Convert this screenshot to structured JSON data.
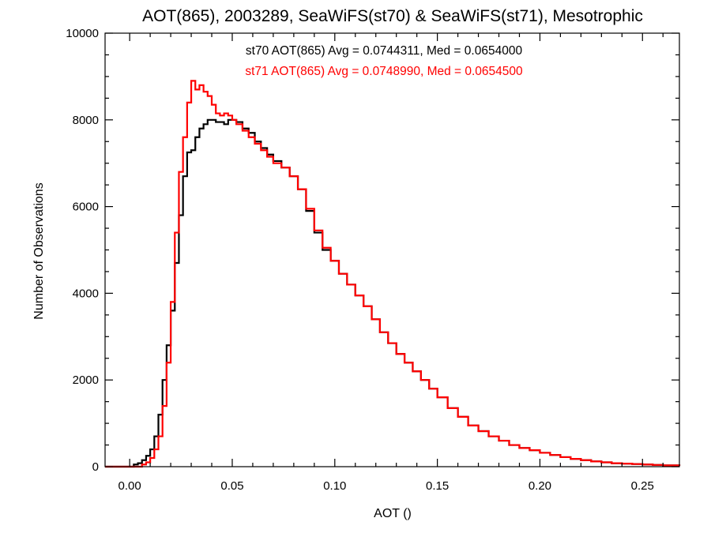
{
  "chart_data": {
    "type": "line",
    "title": "AOT(865), 2003289, SeaWiFS(st70) & SeaWiFS(st71), Mesotrophic",
    "xlabel": "AOT ()",
    "ylabel": "Number of Observations",
    "xlim": [
      -0.012,
      0.268
    ],
    "ylim": [
      0,
      10000
    ],
    "x_ticks": [
      0.0,
      0.05,
      0.1,
      0.15,
      0.2,
      0.25
    ],
    "x_tick_labels": [
      "0.00",
      "0.05",
      "0.10",
      "0.15",
      "0.20",
      "0.25"
    ],
    "y_ticks": [
      0,
      2000,
      4000,
      6000,
      8000,
      10000
    ],
    "y_tick_labels": [
      "0",
      "2000",
      "4000",
      "6000",
      "8000",
      "10000"
    ],
    "legend": [
      {
        "text": "st70 AOT(865) Avg = 0.0744311, Med = 0.0654000",
        "color": "#000000"
      },
      {
        "text": "st71 AOT(865) Avg = 0.0748990, Med = 0.0654500",
        "color": "#ff0000"
      }
    ],
    "legend_placement": "top-center",
    "grid": false,
    "step_style": true,
    "series": [
      {
        "color": "#000000",
        "points": [
          [
            -0.012,
            0
          ],
          [
            0.0,
            0
          ],
          [
            0.002,
            50
          ],
          [
            0.004,
            80
          ],
          [
            0.006,
            150
          ],
          [
            0.008,
            250
          ],
          [
            0.01,
            400
          ],
          [
            0.012,
            700
          ],
          [
            0.014,
            1200
          ],
          [
            0.016,
            2000
          ],
          [
            0.018,
            2800
          ],
          [
            0.02,
            3600
          ],
          [
            0.022,
            4700
          ],
          [
            0.024,
            5800
          ],
          [
            0.026,
            6700
          ],
          [
            0.028,
            7250
          ],
          [
            0.03,
            7300
          ],
          [
            0.032,
            7600
          ],
          [
            0.034,
            7800
          ],
          [
            0.036,
            7900
          ],
          [
            0.038,
            8000
          ],
          [
            0.04,
            8000
          ],
          [
            0.042,
            7950
          ],
          [
            0.044,
            7950
          ],
          [
            0.046,
            7900
          ],
          [
            0.048,
            8000
          ],
          [
            0.05,
            8000
          ],
          [
            0.052,
            7950
          ],
          [
            0.055,
            7800
          ],
          [
            0.058,
            7700
          ],
          [
            0.061,
            7500
          ],
          [
            0.064,
            7350
          ],
          [
            0.067,
            7200
          ],
          [
            0.07,
            7050
          ],
          [
            0.074,
            6900
          ],
          [
            0.078,
            6700
          ],
          [
            0.082,
            6400
          ],
          [
            0.086,
            5900
          ],
          [
            0.09,
            5400
          ],
          [
            0.094,
            5000
          ],
          [
            0.098,
            4750
          ],
          [
            0.102,
            4450
          ],
          [
            0.106,
            4200
          ],
          [
            0.11,
            3950
          ],
          [
            0.114,
            3700
          ],
          [
            0.118,
            3400
          ],
          [
            0.122,
            3100
          ],
          [
            0.126,
            2850
          ],
          [
            0.13,
            2600
          ],
          [
            0.134,
            2400
          ],
          [
            0.138,
            2200
          ],
          [
            0.142,
            2000
          ],
          [
            0.146,
            1800
          ],
          [
            0.15,
            1600
          ],
          [
            0.155,
            1350
          ],
          [
            0.16,
            1150
          ],
          [
            0.165,
            950
          ],
          [
            0.17,
            820
          ],
          [
            0.175,
            700
          ],
          [
            0.18,
            600
          ],
          [
            0.185,
            500
          ],
          [
            0.19,
            430
          ],
          [
            0.195,
            380
          ],
          [
            0.2,
            320
          ],
          [
            0.205,
            270
          ],
          [
            0.21,
            220
          ],
          [
            0.215,
            180
          ],
          [
            0.22,
            150
          ],
          [
            0.225,
            120
          ],
          [
            0.23,
            100
          ],
          [
            0.235,
            80
          ],
          [
            0.24,
            70
          ],
          [
            0.245,
            60
          ],
          [
            0.25,
            50
          ],
          [
            0.255,
            40
          ],
          [
            0.26,
            30
          ],
          [
            0.268,
            20
          ]
        ]
      },
      {
        "color": "#ff0000",
        "points": [
          [
            -0.012,
            0
          ],
          [
            0.004,
            0
          ],
          [
            0.006,
            50
          ],
          [
            0.008,
            100
          ],
          [
            0.01,
            200
          ],
          [
            0.012,
            400
          ],
          [
            0.014,
            700
          ],
          [
            0.016,
            1400
          ],
          [
            0.018,
            2400
          ],
          [
            0.02,
            3800
          ],
          [
            0.022,
            5400
          ],
          [
            0.024,
            6800
          ],
          [
            0.026,
            7600
          ],
          [
            0.028,
            8400
          ],
          [
            0.03,
            8900
          ],
          [
            0.032,
            8700
          ],
          [
            0.034,
            8800
          ],
          [
            0.036,
            8650
          ],
          [
            0.038,
            8550
          ],
          [
            0.04,
            8350
          ],
          [
            0.042,
            8150
          ],
          [
            0.044,
            8100
          ],
          [
            0.046,
            8150
          ],
          [
            0.048,
            8100
          ],
          [
            0.05,
            8000
          ],
          [
            0.052,
            7900
          ],
          [
            0.055,
            7750
          ],
          [
            0.058,
            7600
          ],
          [
            0.061,
            7450
          ],
          [
            0.064,
            7300
          ],
          [
            0.067,
            7150
          ],
          [
            0.07,
            7000
          ],
          [
            0.074,
            6900
          ],
          [
            0.078,
            6700
          ],
          [
            0.082,
            6400
          ],
          [
            0.086,
            5950
          ],
          [
            0.09,
            5450
          ],
          [
            0.094,
            5050
          ],
          [
            0.098,
            4750
          ],
          [
            0.102,
            4450
          ],
          [
            0.106,
            4200
          ],
          [
            0.11,
            3950
          ],
          [
            0.114,
            3700
          ],
          [
            0.118,
            3400
          ],
          [
            0.122,
            3100
          ],
          [
            0.126,
            2850
          ],
          [
            0.13,
            2600
          ],
          [
            0.134,
            2400
          ],
          [
            0.138,
            2200
          ],
          [
            0.142,
            2000
          ],
          [
            0.146,
            1800
          ],
          [
            0.15,
            1600
          ],
          [
            0.155,
            1350
          ],
          [
            0.16,
            1150
          ],
          [
            0.165,
            950
          ],
          [
            0.17,
            820
          ],
          [
            0.175,
            700
          ],
          [
            0.18,
            600
          ],
          [
            0.185,
            500
          ],
          [
            0.19,
            430
          ],
          [
            0.195,
            380
          ],
          [
            0.2,
            320
          ],
          [
            0.205,
            270
          ],
          [
            0.21,
            220
          ],
          [
            0.215,
            180
          ],
          [
            0.22,
            150
          ],
          [
            0.225,
            120
          ],
          [
            0.23,
            100
          ],
          [
            0.235,
            80
          ],
          [
            0.24,
            70
          ],
          [
            0.245,
            60
          ],
          [
            0.25,
            50
          ],
          [
            0.255,
            40
          ],
          [
            0.26,
            30
          ],
          [
            0.268,
            20
          ]
        ]
      }
    ]
  }
}
